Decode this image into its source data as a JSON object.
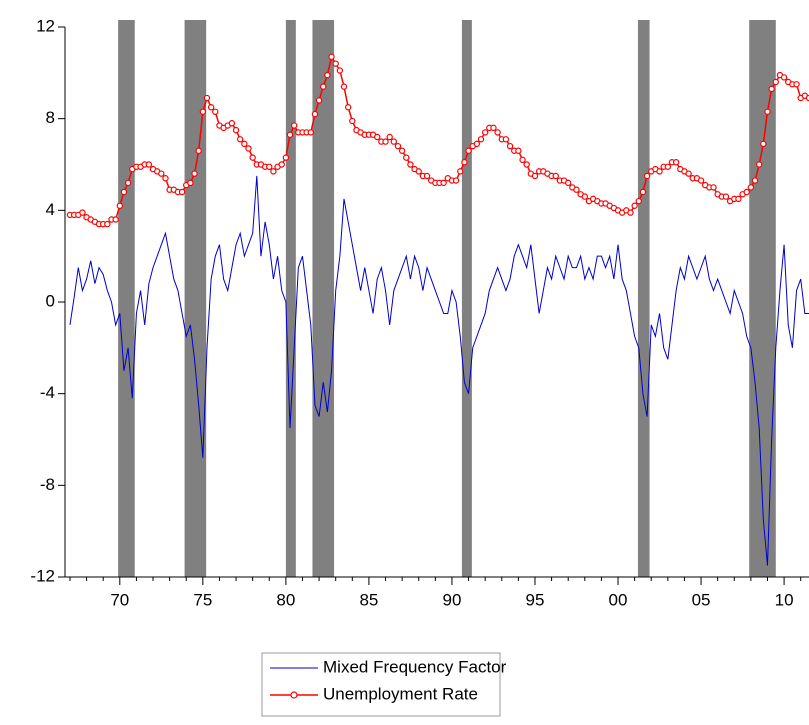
{
  "chart_data": {
    "type": "line",
    "x": [
      1967,
      1967.25,
      1967.5,
      1967.75,
      1968,
      1968.25,
      1968.5,
      1968.75,
      1969,
      1969.25,
      1969.5,
      1969.75,
      1970,
      1970.25,
      1970.5,
      1970.75,
      1971,
      1971.25,
      1971.5,
      1971.75,
      1972,
      1972.25,
      1972.5,
      1972.75,
      1973,
      1973.25,
      1973.5,
      1973.75,
      1974,
      1974.25,
      1974.5,
      1974.75,
      1975,
      1975.25,
      1975.5,
      1975.75,
      1976,
      1976.25,
      1976.5,
      1976.75,
      1977,
      1977.25,
      1977.5,
      1977.75,
      1978,
      1978.25,
      1978.5,
      1978.75,
      1979,
      1979.25,
      1979.5,
      1979.75,
      1980,
      1980.25,
      1980.5,
      1980.75,
      1981,
      1981.25,
      1981.5,
      1981.75,
      1982,
      1982.25,
      1982.5,
      1982.75,
      1983,
      1983.25,
      1983.5,
      1983.75,
      1984,
      1984.25,
      1984.5,
      1984.75,
      1985,
      1985.25,
      1985.5,
      1985.75,
      1986,
      1986.25,
      1986.5,
      1986.75,
      1987,
      1987.25,
      1987.5,
      1987.75,
      1988,
      1988.25,
      1988.5,
      1988.75,
      1989,
      1989.25,
      1989.5,
      1989.75,
      1990,
      1990.25,
      1990.5,
      1990.75,
      1991,
      1991.25,
      1991.5,
      1991.75,
      1992,
      1992.25,
      1992.5,
      1992.75,
      1993,
      1993.25,
      1993.5,
      1993.75,
      1994,
      1994.25,
      1994.5,
      1994.75,
      1995,
      1995.25,
      1995.5,
      1995.75,
      1996,
      1996.25,
      1996.5,
      1996.75,
      1997,
      1997.25,
      1997.5,
      1997.75,
      1998,
      1998.25,
      1998.5,
      1998.75,
      1999,
      1999.25,
      1999.5,
      1999.75,
      2000,
      2000.25,
      2000.5,
      2000.75,
      2001,
      2001.25,
      2001.5,
      2001.75,
      2002,
      2002.25,
      2002.5,
      2002.75,
      2003,
      2003.25,
      2003.5,
      2003.75,
      2004,
      2004.25,
      2004.5,
      2004.75,
      2005,
      2005.25,
      2005.5,
      2005.75,
      2006,
      2006.25,
      2006.5,
      2006.75,
      2007,
      2007.25,
      2007.5,
      2007.75,
      2008,
      2008.25,
      2008.5,
      2008.75,
      2009,
      2009.25,
      2009.5,
      2009.75,
      2010,
      2010.25,
      2010.5,
      2010.75,
      2011,
      2011.25,
      2011.5
    ],
    "series": [
      {
        "name": "Mixed Frequency Factor",
        "color": "#0000cc",
        "marker": false,
        "values": [
          -1.0,
          0.2,
          1.5,
          0.5,
          1.0,
          1.8,
          0.8,
          1.5,
          1.2,
          0.5,
          0.0,
          -1.0,
          -0.5,
          -3.0,
          -2.0,
          -4.2,
          -0.5,
          0.5,
          -1.0,
          0.8,
          1.5,
          2.0,
          2.5,
          3.0,
          2.0,
          1.0,
          0.5,
          -0.5,
          -1.5,
          -1.0,
          -2.5,
          -4.5,
          -6.8,
          -2.0,
          1.0,
          2.0,
          2.5,
          1.0,
          0.5,
          1.5,
          2.5,
          3.0,
          2.0,
          2.5,
          3.0,
          5.5,
          2.0,
          3.5,
          2.5,
          1.0,
          2.0,
          0.5,
          0.0,
          -5.5,
          -2.0,
          1.5,
          2.0,
          0.5,
          -1.0,
          -4.5,
          -5.0,
          -3.5,
          -4.8,
          -3.0,
          0.5,
          2.0,
          4.5,
          3.5,
          2.5,
          1.5,
          0.5,
          1.5,
          0.5,
          -0.5,
          1.0,
          1.5,
          0.5,
          -1.0,
          0.5,
          1.0,
          1.5,
          2.0,
          1.0,
          2.0,
          1.5,
          0.5,
          1.5,
          1.0,
          0.5,
          0.0,
          -0.5,
          -0.5,
          0.5,
          0.0,
          -1.5,
          -3.5,
          -4.0,
          -2.0,
          -1.5,
          -1.0,
          -0.5,
          0.5,
          1.0,
          1.5,
          1.0,
          0.5,
          1.0,
          2.0,
          2.5,
          2.0,
          1.5,
          2.5,
          1.0,
          -0.5,
          0.5,
          1.5,
          1.0,
          2.0,
          1.5,
          1.0,
          2.0,
          1.5,
          1.5,
          2.0,
          1.0,
          1.5,
          1.0,
          2.0,
          2.0,
          1.5,
          2.0,
          1.0,
          2.5,
          1.0,
          0.5,
          -0.5,
          -1.5,
          -2.0,
          -4.0,
          -5.0,
          -1.0,
          -1.5,
          -0.5,
          -2.0,
          -2.5,
          -1.0,
          0.5,
          1.5,
          1.0,
          2.0,
          1.5,
          1.0,
          1.5,
          2.0,
          1.0,
          0.5,
          1.0,
          0.5,
          0.0,
          -0.5,
          0.5,
          0.0,
          -0.5,
          -1.5,
          -2.0,
          -3.5,
          -5.5,
          -9.5,
          -11.5,
          -6.0,
          -2.0,
          0.5,
          2.5,
          -1.0,
          -2.0,
          0.5,
          1.0,
          -0.5,
          -0.5
        ]
      },
      {
        "name": "Unemployment Rate",
        "color": "#ff0000",
        "marker": true,
        "values": [
          3.8,
          3.8,
          3.8,
          3.9,
          3.7,
          3.6,
          3.5,
          3.4,
          3.4,
          3.4,
          3.6,
          3.6,
          4.2,
          4.8,
          5.2,
          5.8,
          5.9,
          5.9,
          6.0,
          6.0,
          5.8,
          5.7,
          5.6,
          5.4,
          4.9,
          4.9,
          4.8,
          4.8,
          5.1,
          5.2,
          5.6,
          6.6,
          8.3,
          8.9,
          8.5,
          8.3,
          7.7,
          7.6,
          7.7,
          7.8,
          7.5,
          7.1,
          6.9,
          6.7,
          6.3,
          6.0,
          6.0,
          5.9,
          5.9,
          5.7,
          5.9,
          6.0,
          6.3,
          7.3,
          7.7,
          7.4,
          7.4,
          7.4,
          7.4,
          8.2,
          8.8,
          9.4,
          9.9,
          10.7,
          10.4,
          10.1,
          9.4,
          8.5,
          7.9,
          7.5,
          7.4,
          7.3,
          7.3,
          7.3,
          7.2,
          7.0,
          7.0,
          7.2,
          7.0,
          6.8,
          6.6,
          6.3,
          6.0,
          5.8,
          5.7,
          5.5,
          5.5,
          5.3,
          5.2,
          5.2,
          5.2,
          5.4,
          5.3,
          5.3,
          5.7,
          6.1,
          6.6,
          6.8,
          6.9,
          7.1,
          7.4,
          7.6,
          7.6,
          7.4,
          7.1,
          7.1,
          6.8,
          6.6,
          6.6,
          6.2,
          6.0,
          5.6,
          5.5,
          5.7,
          5.7,
          5.6,
          5.5,
          5.5,
          5.3,
          5.3,
          5.2,
          5.0,
          4.9,
          4.7,
          4.6,
          4.4,
          4.5,
          4.4,
          4.3,
          4.3,
          4.2,
          4.1,
          4.0,
          3.9,
          4.0,
          3.9,
          4.2,
          4.4,
          4.8,
          5.5,
          5.7,
          5.8,
          5.7,
          5.9,
          5.9,
          6.1,
          6.1,
          5.8,
          5.7,
          5.6,
          5.4,
          5.4,
          5.3,
          5.1,
          5.0,
          5.0,
          4.7,
          4.6,
          4.6,
          4.4,
          4.5,
          4.5,
          4.7,
          4.8,
          5.0,
          5.3,
          6.0,
          6.9,
          8.3,
          9.3,
          9.6,
          9.9,
          9.8,
          9.6,
          9.5,
          9.5,
          8.9,
          9.0,
          8.9
        ]
      }
    ],
    "recessions": [
      [
        1969.9,
        1970.9
      ],
      [
        1973.9,
        1975.2
      ],
      [
        1980.0,
        1980.6
      ],
      [
        1981.6,
        1982.9
      ],
      [
        1990.6,
        1991.2
      ],
      [
        2001.2,
        2001.9
      ],
      [
        2007.9,
        2009.5
      ]
    ],
    "recession_color": "#808080",
    "xlim": [
      1966.7,
      2011.5
    ],
    "xticks": [
      {
        "value": 1970,
        "label": "70"
      },
      {
        "value": 1975,
        "label": "75"
      },
      {
        "value": 1980,
        "label": "80"
      },
      {
        "value": 1985,
        "label": "85"
      },
      {
        "value": 1990,
        "label": "90"
      },
      {
        "value": 1995,
        "label": "95"
      },
      {
        "value": 2000,
        "label": "00"
      },
      {
        "value": 2005,
        "label": "05"
      },
      {
        "value": 2010,
        "label": "10"
      }
    ],
    "xminorticks": [
      1967,
      1968,
      1969,
      1971,
      1972,
      1973,
      1974,
      1976,
      1977,
      1978,
      1979,
      1981,
      1982,
      1983,
      1984,
      1986,
      1987,
      1988,
      1989,
      1991,
      1992,
      1993,
      1994,
      1996,
      1997,
      1998,
      1999,
      2001,
      2002,
      2003,
      2004,
      2006,
      2007,
      2008,
      2009,
      2011
    ],
    "ylim": [
      -12,
      12
    ],
    "yticks": [
      12,
      8,
      4,
      0,
      -4,
      -8,
      -12
    ],
    "legend": "bottom"
  }
}
